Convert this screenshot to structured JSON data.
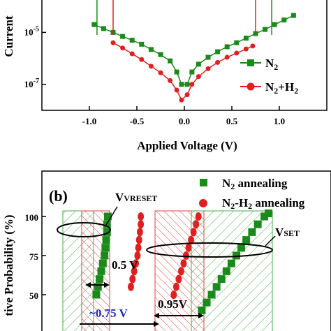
{
  "chart_data": [
    {
      "type": "line",
      "panel": "",
      "title": "",
      "xlabel": "Applied Voltage (V)",
      "ylabel": "Current",
      "xlim": [
        -1.5,
        1.5
      ],
      "ylim": [
        1e-08,
        0.0002
      ],
      "yscale": "log",
      "x_ticks": [
        -1.0,
        -0.5,
        0.0,
        0.5,
        1.0
      ],
      "x_tick_labels": [
        "-1.0",
        "-0.5",
        "0.0",
        "0.5",
        "1.0"
      ],
      "y_ticks": [
        1e-07,
        1e-05
      ],
      "y_tick_labels": [
        "10-7",
        "10-5"
      ],
      "legend_position": "bottom-right",
      "series": [
        {
          "name": "N2",
          "color": "#1a8a1a",
          "marker": "square",
          "x": [
            -0.95,
            -0.85,
            -0.75,
            -0.65,
            -0.55,
            -0.45,
            -0.35,
            -0.25,
            -0.15,
            -0.08,
            -0.03,
            0.03,
            0.08,
            0.15,
            0.25,
            0.35,
            0.45,
            0.55,
            0.65,
            0.75,
            0.85,
            0.95,
            1.05,
            1.15
          ],
          "y": [
            2e-05,
            1.4e-05,
            1e-05,
            7e-06,
            5e-06,
            3.5e-06,
            2.2e-06,
            1.4e-06,
            8e-07,
            3e-07,
            1e-07,
            1e-07,
            3e-07,
            6e-07,
            1.1e-06,
            1.8e-06,
            2.8e-06,
            4e-06,
            6e-06,
            9e-06,
            1.3e-05,
            2e-05,
            3e-05,
            4.5e-05
          ]
        },
        {
          "name": "N2+H2",
          "color": "#e02020",
          "marker": "circle",
          "x": [
            -0.75,
            -0.65,
            -0.55,
            -0.45,
            -0.35,
            -0.25,
            -0.15,
            -0.08,
            -0.03,
            0.03,
            0.08,
            0.15,
            0.25,
            0.35,
            0.45,
            0.55,
            0.65,
            0.72
          ],
          "y": [
            4e-06,
            2.5e-06,
            1.5e-06,
            9e-07,
            5e-07,
            2.8e-07,
            1.4e-07,
            6e-08,
            2.5e-08,
            4e-08,
            1e-07,
            2e-07,
            4e-07,
            7e-07,
            1.1e-06,
            1.6e-06,
            2.3e-06,
            3e-06
          ]
        }
      ]
    },
    {
      "type": "scatter",
      "panel": "(b)",
      "title": "",
      "xlabel": "",
      "ylabel": "tive Probability (%)",
      "ylim": [
        38,
        110
      ],
      "y_ticks": [
        50,
        75,
        100
      ],
      "y_tick_labels": [
        "50",
        "75",
        "100"
      ],
      "legend_position": "top-right",
      "series": [
        {
          "name": "N2 annealing",
          "color": "#1a8a1a",
          "marker": "square",
          "reset_x": [
            0.8,
            0.79,
            0.79,
            0.78,
            0.77,
            0.76,
            0.74,
            0.72,
            0.7,
            0.68,
            0.66
          ],
          "reset_y": [
            100,
            95,
            90,
            85,
            80,
            75,
            70,
            65,
            60,
            55,
            50
          ],
          "set_x": [
            2.75,
            2.7,
            2.62,
            2.55,
            2.48,
            2.42,
            2.36,
            2.3,
            2.24,
            2.18,
            2.12,
            2.06,
            2.0,
            1.94
          ],
          "set_y": [
            102,
            100,
            95,
            90,
            85,
            80,
            75,
            70,
            65,
            60,
            55,
            50,
            45,
            40
          ]
        },
        {
          "name": "N2-H2 annealing",
          "color": "#e02020",
          "marker": "circle",
          "reset_x": [
            1.2,
            1.2,
            1.19,
            1.18,
            1.17,
            1.16,
            1.14,
            1.12,
            1.1,
            1.08
          ],
          "reset_y": [
            100,
            95,
            90,
            85,
            80,
            75,
            70,
            65,
            60,
            55
          ],
          "set_x": [
            1.9,
            1.87,
            1.84,
            1.81,
            1.78,
            1.75,
            1.72,
            1.69,
            1.66,
            1.63,
            1.6
          ],
          "set_y": [
            100,
            95,
            90,
            85,
            80,
            75,
            70,
            65,
            60,
            55,
            50
          ]
        }
      ],
      "annotations": {
        "v_reset": "VRESET",
        "v_set": "VSET",
        "gap_reset": "0.5 V",
        "gap_075": "~0.75 V",
        "gap_095": "0.95V"
      }
    }
  ]
}
